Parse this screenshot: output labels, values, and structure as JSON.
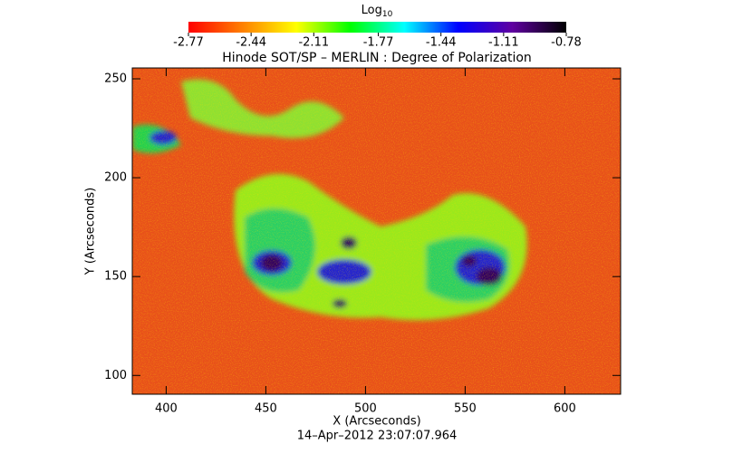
{
  "chart_data": {
    "type": "image",
    "title": "Hinode SOT/SP – MERLIN : Degree of Polarization",
    "xlabel": "X (Arcseconds)",
    "ylabel": "Y (Arcseconds)",
    "date": "14–Apr–2012 23:07:07.964",
    "xlim": [
      383,
      628
    ],
    "xticks": [
      400,
      450,
      500,
      550,
      600
    ],
    "ylim": [
      90.5,
      255.5
    ],
    "yticks": [
      100,
      150,
      200,
      250
    ],
    "colorbar": {
      "label": {
        "base": "Log",
        "subscript": "10"
      },
      "clim": [
        -2.77,
        -0.78
      ],
      "ticks": [
        -2.77,
        -2.44,
        -2.11,
        -1.77,
        -1.44,
        -1.11,
        -0.78
      ],
      "colormap": [
        "#ff0000",
        "#ff8000",
        "#ffff00",
        "#00ff00",
        "#00ffff",
        "#0000ff",
        "#6000a0",
        "#000000"
      ]
    }
  }
}
